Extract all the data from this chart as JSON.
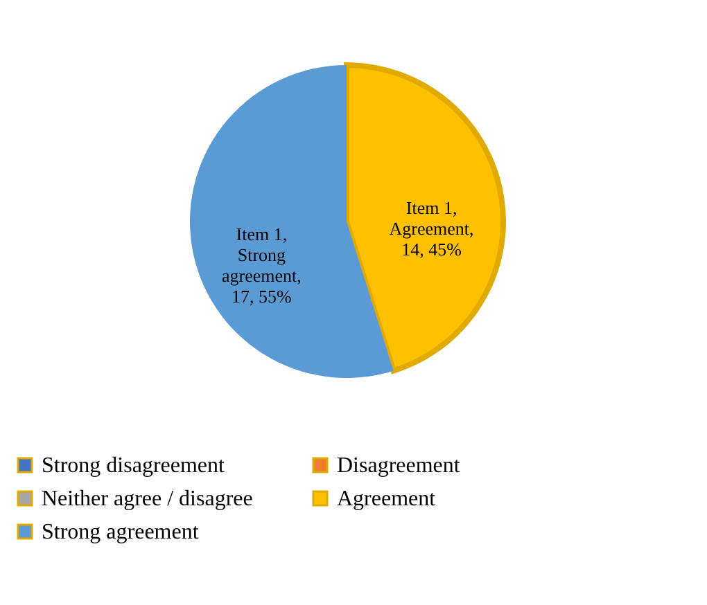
{
  "chart_data": {
    "type": "pie",
    "categories": [
      "Strong disagreement",
      "Disagreement",
      "Neither agree / disagree",
      "Agreement",
      "Strong agreement"
    ],
    "values": [
      0,
      0,
      0,
      14,
      17
    ],
    "colors": [
      "#4472c4",
      "#ed7d31",
      "#a5a5a5",
      "#ffc000",
      "#5b9bd5"
    ],
    "value_labels": [
      null,
      null,
      null,
      "Item 1,\nAgreement,\n14, 45%",
      "Item 1,\nStrong\nagreement,\n17, 55%"
    ],
    "legend": "bottom"
  }
}
